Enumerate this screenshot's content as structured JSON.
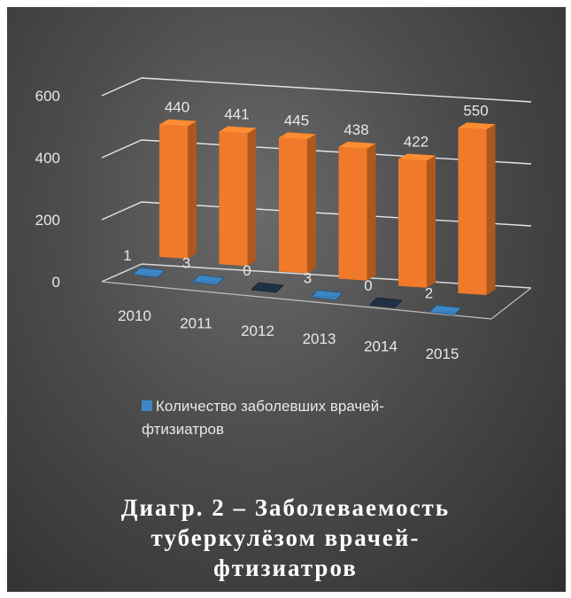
{
  "chart_data": {
    "type": "bar",
    "categories": [
      "2010",
      "2011",
      "2012",
      "2013",
      "2014",
      "2015"
    ],
    "series": [
      {
        "name": "",
        "values": [
          440,
          441,
          445,
          438,
          422,
          550
        ],
        "color": "#f07a2a"
      },
      {
        "name": "Количество заболевших врачей-фтизиатров",
        "values": [
          1,
          3,
          0,
          3,
          0,
          2
        ],
        "color": "#3d86c6"
      }
    ],
    "y_ticks": [
      "0",
      "200",
      "400",
      "600"
    ],
    "ylim": [
      0,
      600
    ],
    "legend_position": "bottom",
    "grid": true,
    "three_d": true
  },
  "legend": {
    "lines": [
      "Количество заболевших врачей-",
      "фтизиатров"
    ]
  },
  "caption": {
    "lines": [
      "Диагр. 2 – Заболеваемость",
      "туберкулёзом врачей-",
      "фтизиатров"
    ]
  },
  "colors": {
    "background_dark": "#2f2f2f",
    "bar_orange": "#f07a2a",
    "bar_blue": "#3d86c6",
    "text": "#e8e8e8"
  }
}
